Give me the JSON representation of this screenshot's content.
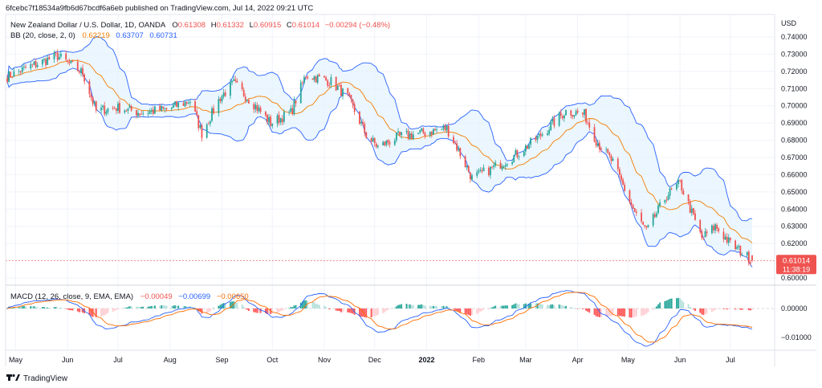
{
  "header": {
    "published_line": "6fcebc7f18534a9fb6d67bcdf6a6eb published on TradingView.com, Jul 14, 2022 09:21 UTC"
  },
  "legend": {
    "symbol": "New Zealand Dollar / U.S. Dollar, 1D, OANDA",
    "o_label": "O",
    "o": "0.61308",
    "h_label": "H",
    "h": "0.61332",
    "l_label": "L",
    "l": "0.60915",
    "c_label": "C",
    "c": "0.61014",
    "change": "−0.00294 (−0.48%)",
    "bb_label": "BB (20, close, 2, 0)",
    "bb_basis": "0.62219",
    "bb_upper": "0.63707",
    "bb_lower": "0.60731",
    "macd_label": "MACD (12, 26, close, 9, EMA, EMA)",
    "macd_hist": "−0.00049",
    "macd_line": "−0.00699",
    "macd_signal": "−0.00650"
  },
  "price_axis": {
    "currency": "USD",
    "ticks": [
      "0.74000",
      "0.73000",
      "0.72000",
      "0.71000",
      "0.70000",
      "0.69000",
      "0.68000",
      "0.67000",
      "0.66000",
      "0.65000",
      "0.64000",
      "0.63000",
      "0.62000",
      "0.60000"
    ],
    "last_price": "0.61014",
    "countdown": "11:38:19"
  },
  "macd_axis": {
    "ticks": [
      "0.00000",
      "−0.01000"
    ]
  },
  "time_axis": {
    "labels": [
      "May",
      "Jun",
      "Jul",
      "Aug",
      "Sep",
      "Oct",
      "Nov",
      "Dec",
      "2022",
      "Feb",
      "Mar",
      "Apr",
      "May",
      "Jun",
      "Jul"
    ]
  },
  "footer": {
    "brand": "TradingView"
  },
  "colors": {
    "up": "#26a69a",
    "down": "#ef5350",
    "bb_fill": "#e3f2fd",
    "bb_band": "#2962ff",
    "bb_basis": "#f57c00",
    "macd_line": "#2962ff",
    "signal_line": "#ff6d00",
    "hist_up_strong": "#26a69a",
    "hist_up_weak": "#b2dfdb",
    "hist_down_strong": "#ff5252",
    "hist_down_weak": "#ffcdd2",
    "grid": "#f0f3fa"
  },
  "chart_data": [
    {
      "type": "line",
      "kind": "candlestick_with_bollinger",
      "symbol": "NZDUSD daily",
      "x_range": [
        "2021-04-26",
        "2022-07-14"
      ],
      "ylim": [
        0.6,
        0.745
      ],
      "ylabel": "USD",
      "grid": true,
      "anchor_closes": [
        {
          "x": "2021-04-26",
          "close": 0.717
        },
        {
          "x": "2021-05-10",
          "close": 0.723
        },
        {
          "x": "2021-05-26",
          "close": 0.729
        },
        {
          "x": "2021-06-10",
          "close": 0.719
        },
        {
          "x": "2021-06-18",
          "close": 0.697
        },
        {
          "x": "2021-06-30",
          "close": 0.699
        },
        {
          "x": "2021-07-15",
          "close": 0.696
        },
        {
          "x": "2021-07-30",
          "close": 0.698
        },
        {
          "x": "2021-08-13",
          "close": 0.703
        },
        {
          "x": "2021-08-20",
          "close": 0.684
        },
        {
          "x": "2021-08-31",
          "close": 0.705
        },
        {
          "x": "2021-09-08",
          "close": 0.713
        },
        {
          "x": "2021-09-20",
          "close": 0.701
        },
        {
          "x": "2021-09-30",
          "close": 0.69
        },
        {
          "x": "2021-10-12",
          "close": 0.696
        },
        {
          "x": "2021-10-21",
          "close": 0.718
        },
        {
          "x": "2021-11-05",
          "close": 0.714
        },
        {
          "x": "2021-11-15",
          "close": 0.705
        },
        {
          "x": "2021-11-26",
          "close": 0.683
        },
        {
          "x": "2021-12-03",
          "close": 0.676
        },
        {
          "x": "2021-12-15",
          "close": 0.682
        },
        {
          "x": "2021-12-28",
          "close": 0.684
        },
        {
          "x": "2022-01-13",
          "close": 0.687
        },
        {
          "x": "2022-01-20",
          "close": 0.674
        },
        {
          "x": "2022-01-28",
          "close": 0.658
        },
        {
          "x": "2022-02-10",
          "close": 0.664
        },
        {
          "x": "2022-02-24",
          "close": 0.672
        },
        {
          "x": "2022-03-10",
          "close": 0.683
        },
        {
          "x": "2022-03-25",
          "close": 0.697
        },
        {
          "x": "2022-04-05",
          "close": 0.695
        },
        {
          "x": "2022-04-12",
          "close": 0.68
        },
        {
          "x": "2022-04-22",
          "close": 0.667
        },
        {
          "x": "2022-05-05",
          "close": 0.638
        },
        {
          "x": "2022-05-12",
          "close": 0.627
        },
        {
          "x": "2022-05-24",
          "close": 0.648
        },
        {
          "x": "2022-06-01",
          "close": 0.655
        },
        {
          "x": "2022-06-14",
          "close": 0.623
        },
        {
          "x": "2022-06-22",
          "close": 0.63
        },
        {
          "x": "2022-07-01",
          "close": 0.62
        },
        {
          "x": "2022-07-14",
          "close": 0.6101
        }
      ]
    },
    {
      "type": "bar",
      "kind": "macd_histogram_with_lines",
      "x_range": [
        "2021-04-26",
        "2022-07-14"
      ],
      "ylim": [
        -0.0118,
        0.0057
      ],
      "last": {
        "histogram": -0.00049,
        "macd": -0.00699,
        "signal": -0.0065
      }
    }
  ]
}
